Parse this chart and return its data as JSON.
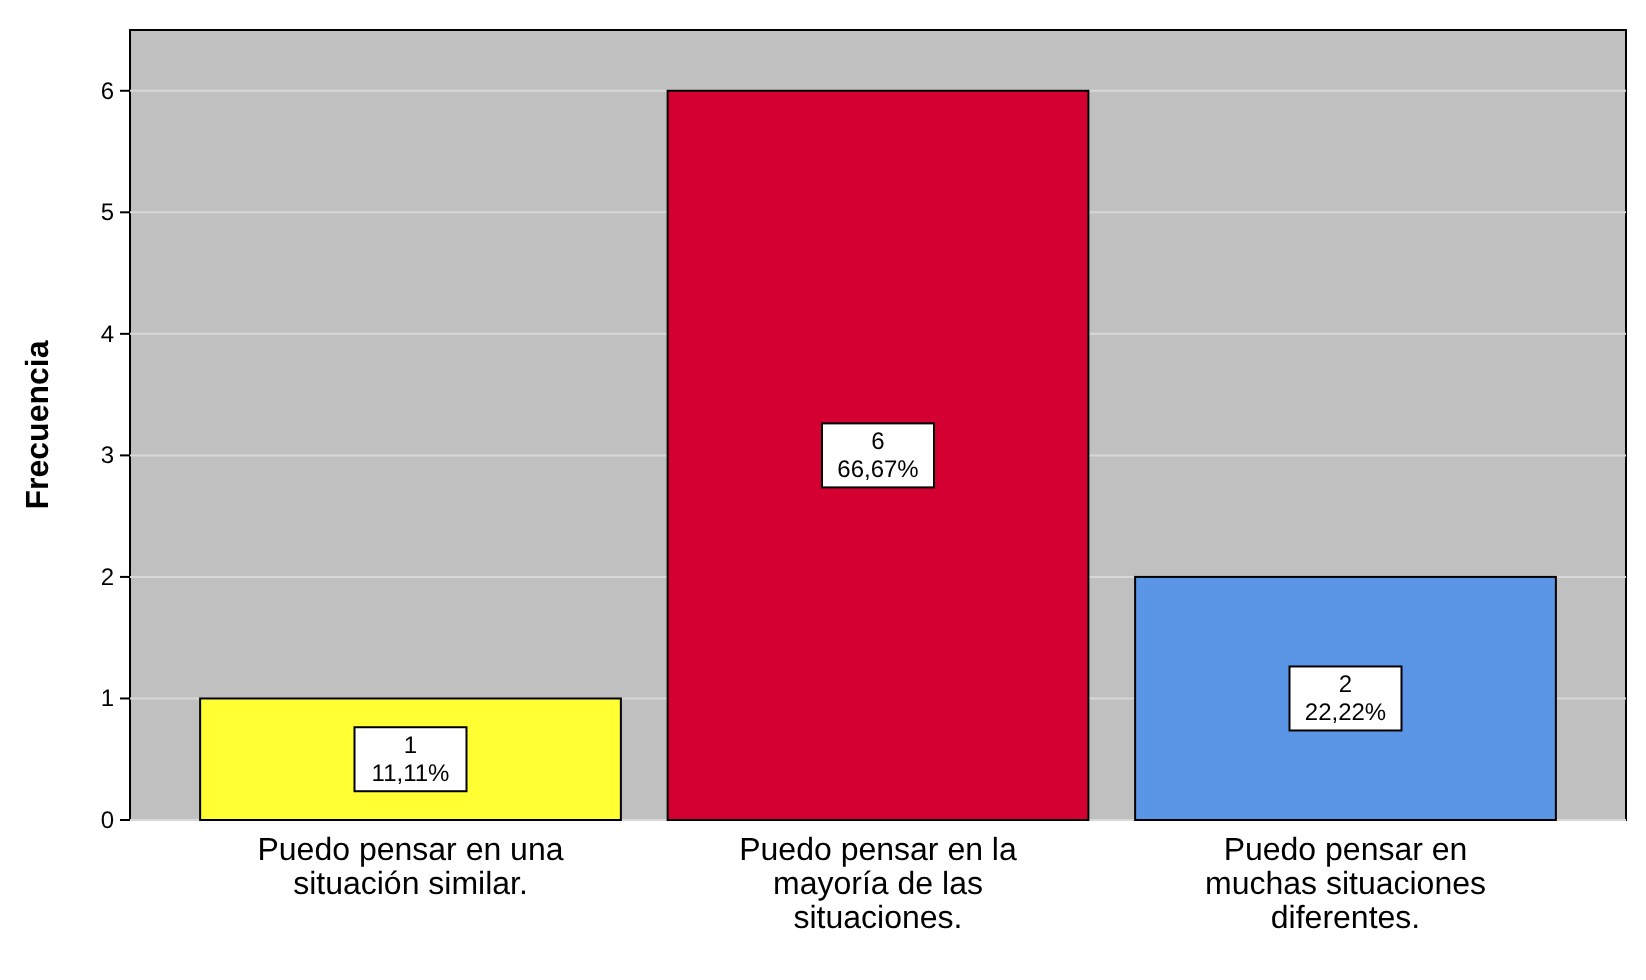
{
  "chart_data": {
    "type": "bar",
    "ylabel": "Frecuencia",
    "categories": [
      "Puedo pensar en una situación similar.",
      "Puedo pensar en la mayoría de las situaciones.",
      "Puedo pensar en muchas situaciones diferentes."
    ],
    "values": [
      1,
      6,
      2
    ],
    "colors": [
      "#ffff33",
      "#d50032",
      "#5b96e6"
    ],
    "value_labels": [
      "1\n11,11%",
      "6\n66,67%",
      "2\n22,22%"
    ],
    "ylim": [
      0,
      6.5
    ],
    "yticks": [
      0,
      1,
      2,
      3,
      4,
      5,
      6
    ],
    "grid": "y"
  }
}
